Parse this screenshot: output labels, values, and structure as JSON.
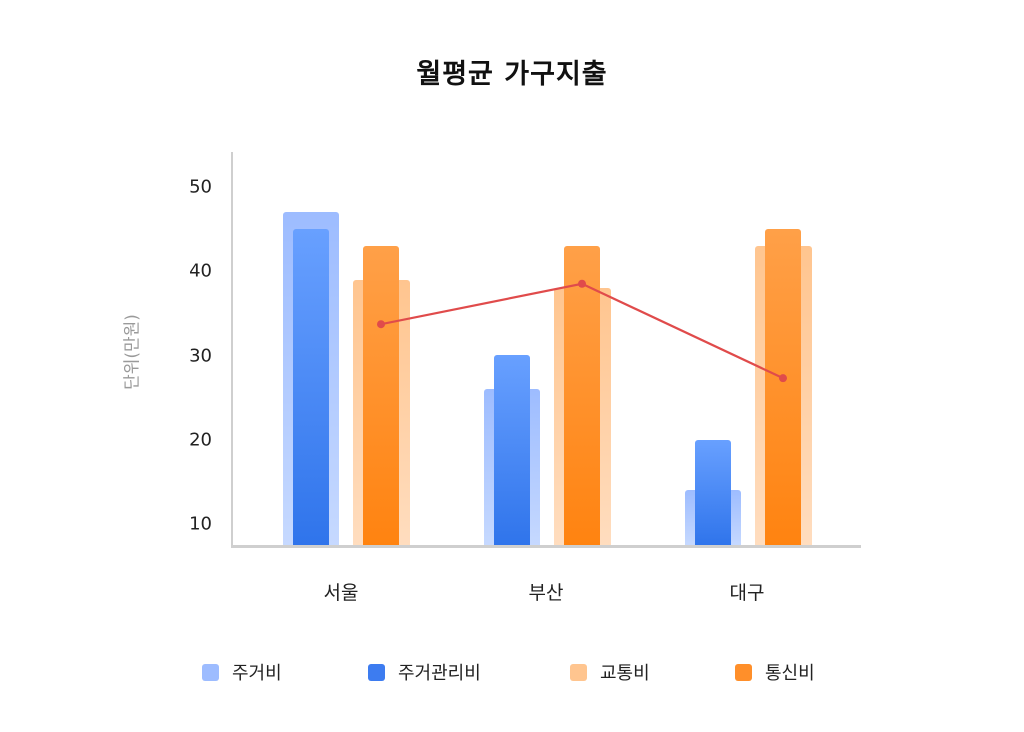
{
  "chart_data": {
    "type": "bar",
    "title": "월평균 가구지출",
    "xlabel": "",
    "ylabel": "단위(만원)",
    "ylim": [
      7.4,
      54
    ],
    "yticks": [
      10,
      20,
      30,
      40,
      50
    ],
    "grid": false,
    "legend_position": "bottom",
    "categories": [
      "서울",
      "부산",
      "대구"
    ],
    "series": [
      {
        "name": "주거비",
        "type": "bar",
        "color": "#9dbcff",
        "values": [
          47,
          26,
          14
        ]
      },
      {
        "name": "주거관리비",
        "type": "bar",
        "color": "#3d7cf0",
        "values": [
          45,
          30,
          20
        ]
      },
      {
        "name": "교통비",
        "type": "bar",
        "color": "#ffc58f",
        "values": [
          39,
          38,
          43
        ]
      },
      {
        "name": "통신비",
        "type": "bar",
        "color": "#ff8f2a",
        "values": [
          43,
          43,
          45
        ]
      },
      {
        "name": "line",
        "type": "line",
        "color": "#e04b4b",
        "values": [
          33.7,
          38.5,
          27.3
        ]
      }
    ]
  },
  "labels": {
    "title": "월평균 가구지출",
    "ylabel": "단위(만원)",
    "ticks": [
      "50",
      "40",
      "30",
      "20",
      "10"
    ],
    "categories": [
      "서울",
      "부산",
      "대구"
    ],
    "legend": [
      "주거비",
      "주거관리비",
      "교통비",
      "통신비"
    ]
  }
}
